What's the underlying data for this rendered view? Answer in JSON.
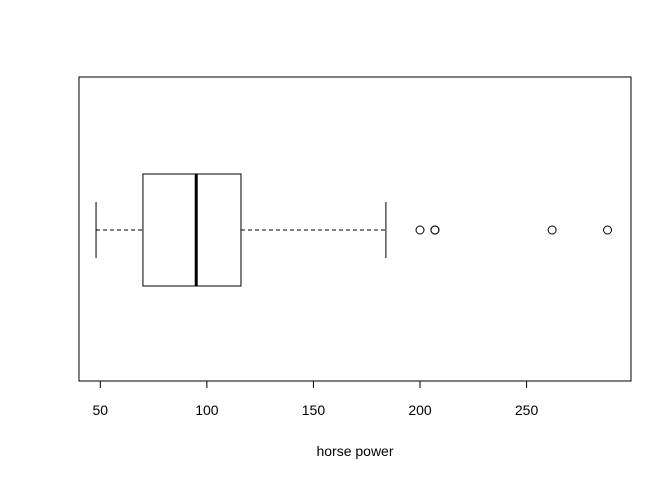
{
  "chart_data": {
    "type": "boxplot",
    "orientation": "horizontal",
    "title": "",
    "xlabel": "horse power",
    "ylabel": "",
    "xlim": [
      40,
      299
    ],
    "x_ticks": [
      50,
      100,
      150,
      200,
      250
    ],
    "x_tick_labels": [
      "50",
      "100",
      "150",
      "200",
      "250"
    ],
    "grid": false,
    "legend": "none",
    "box": {
      "whisker_low": 48,
      "q1": 70,
      "median": 95,
      "q3": 116,
      "whisker_high": 184
    },
    "outliers": [
      200,
      207,
      207,
      262,
      288
    ],
    "colors": {
      "stroke": "#000000",
      "background": "#ffffff"
    }
  }
}
